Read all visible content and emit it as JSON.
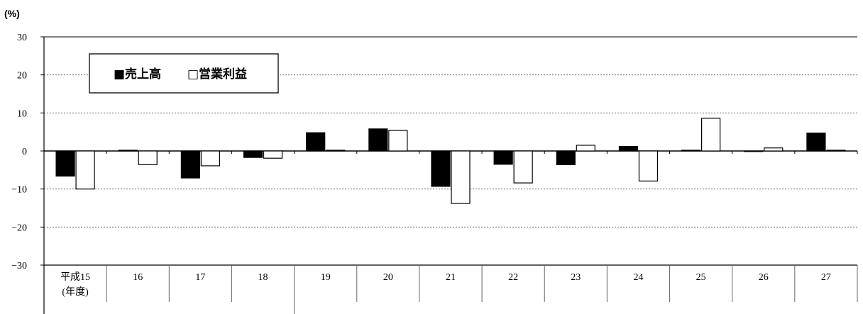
{
  "chart_data": {
    "type": "bar",
    "unit_label": "(%)",
    "categories": [
      "平成15",
      "16",
      "17",
      "18",
      "19",
      "20",
      "21",
      "22",
      "23",
      "24",
      "25",
      "26",
      "27"
    ],
    "first_category_sublabel": "(年度)",
    "series": [
      {
        "name": "売上高",
        "color": "#000000",
        "values": [
          -6.6,
          0.2,
          -7.1,
          -1.7,
          4.8,
          5.8,
          -9.3,
          -3.5,
          -3.6,
          1.2,
          0.2,
          0.0,
          4.7
        ]
      },
      {
        "name": "営業利益",
        "color": "#ffffff",
        "values": [
          -10.0,
          -3.6,
          -3.9,
          -1.9,
          0.2,
          5.4,
          -13.8,
          -8.4,
          1.5,
          -7.9,
          8.6,
          0.8,
          0.2
        ]
      }
    ],
    "ylim": [
      -30,
      30
    ],
    "yticks": [
      -30,
      -20,
      -10,
      0,
      10,
      20,
      30
    ],
    "ytick_labels": [
      "−30",
      "−20",
      "−10",
      "0",
      "10",
      "20",
      "30"
    ],
    "grid": true,
    "legend_position": "top-left",
    "legend": [
      "■売上高",
      "□営業利益"
    ]
  }
}
